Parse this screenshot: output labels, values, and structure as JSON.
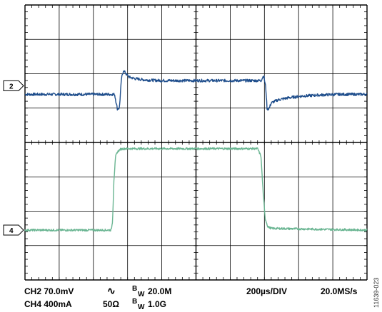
{
  "colors": {
    "ch2": "#1f4e8c",
    "ch4": "#6ab592",
    "grid": "#000000"
  },
  "figure_id": "11639-023",
  "readouts": {
    "ch2_scale": "CH2 70.0mV",
    "coupling_symbol": "∿",
    "bw_ch2": "20.0M",
    "timebase": "200µs/DIV",
    "sample_rate": "20.0MS/s",
    "ch4_scale": "CH4 400mA",
    "impedance": "50Ω",
    "bw_ch4": "1.0G",
    "bw_prefix": "B",
    "bw_sub": "W"
  },
  "chart_data": {
    "type": "line",
    "grid": true,
    "xlim": [
      0,
      10
    ],
    "ylim": [
      -4,
      4
    ],
    "x_unit": "divisions (200µs/DIV)",
    "channel_markers": [
      {
        "label": "2",
        "y": 1.65
      },
      {
        "label": "4",
        "y": -2.55
      }
    ],
    "series": [
      {
        "name": "CH2",
        "color": "#1f4e8c",
        "noise": 0.04,
        "x": [
          0,
          2.62,
          2.7,
          2.76,
          2.82,
          2.88,
          2.95,
          3.05,
          3.2,
          3.5,
          4,
          5,
          6,
          6.9,
          6.98,
          7.04,
          7.08,
          7.14,
          7.2,
          7.4,
          7.7,
          8.1,
          8.6,
          9.2,
          10
        ],
        "y": [
          1.4,
          1.4,
          0.98,
          1.0,
          1.85,
          2.1,
          2.0,
          1.9,
          1.86,
          1.82,
          1.8,
          1.8,
          1.8,
          1.8,
          1.95,
          1.6,
          0.96,
          1.0,
          1.15,
          1.24,
          1.3,
          1.35,
          1.38,
          1.4,
          1.4
        ]
      },
      {
        "name": "CH4",
        "color": "#6ab592",
        "noise": 0.03,
        "x": [
          0,
          2.52,
          2.56,
          2.6,
          2.65,
          2.7,
          2.78,
          2.9,
          3.3,
          6.8,
          6.9,
          6.96,
          7.02,
          7.1,
          7.2,
          10
        ],
        "y": [
          -2.55,
          -2.55,
          -2.3,
          -1.1,
          -0.4,
          -0.28,
          -0.2,
          -0.18,
          -0.18,
          -0.18,
          -0.4,
          -1.4,
          -2.2,
          -2.45,
          -2.5,
          -2.55
        ]
      }
    ]
  }
}
